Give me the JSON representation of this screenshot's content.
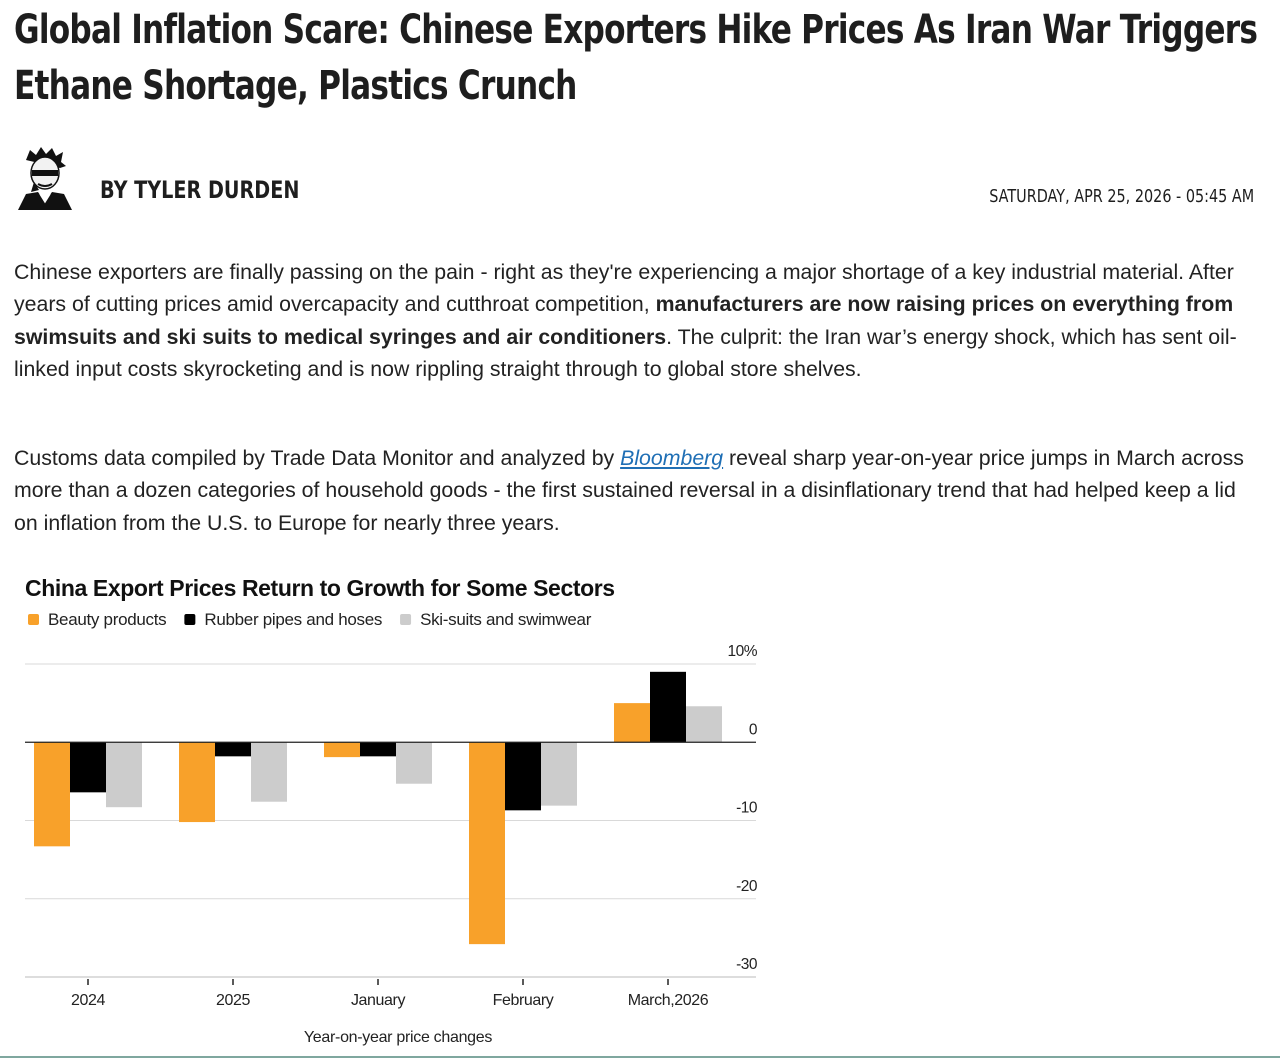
{
  "article": {
    "headline": "Global Inflation Scare: Chinese Exporters Hike Prices As Iran War Triggers Ethane Shortage, Plastics Crunch",
    "author": "BY TYLER DURDEN",
    "date": "SATURDAY, APR 25, 2026 - 05:45 AM",
    "paragraph1": {
      "intro": "Chinese exporters are finally passing on the pain - right as they're experiencing a major shortage of a key industrial material. After years of cutting prices amid overcapacity and cutthroat competition, ",
      "bold": "manufacturers are now raising prices on everything from swimsuits and ski suits to medical syringes and air conditioners",
      "outro": ". The culprit: the Iran war’s energy shock, which has sent oil-linked input costs skyrocketing and is now rippling straight through to global store shelves."
    },
    "paragraph2": {
      "intro": "Customs data compiled by Trade Data Monitor and analyzed by ",
      "link": "Bloomberg",
      "outro": " reveal sharp year-on-year price jumps in March across more than a dozen categories of household goods - the first sustained reversal in a disinflationary trend that had helped keep a lid on inflation from the U.S. to Europe for nearly three years."
    }
  },
  "chart_data": {
    "type": "bar",
    "title": "China Export Prices Return to Growth for Some Sectors",
    "xlabel": "Year-on-year price changes",
    "ylabel": "",
    "categories": [
      "2024",
      "2025",
      "January",
      "February",
      "March,2026"
    ],
    "series": [
      {
        "name": "Beauty products",
        "color": "#f8a12a",
        "values": [
          -13.3,
          -10.2,
          -1.9,
          -25.8,
          5.0
        ]
      },
      {
        "name": "Rubber pipes and hoses",
        "color": "#000000",
        "values": [
          -6.4,
          -1.8,
          -1.8,
          -8.7,
          9.0
        ]
      },
      {
        "name": "Ski-suits and swimwear",
        "color": "#cccccc",
        "values": [
          -8.3,
          -7.6,
          -5.3,
          -8.1,
          4.6
        ]
      }
    ],
    "ylim": [
      -30,
      10
    ],
    "yticks": [
      10,
      0,
      -10,
      -20,
      -30
    ],
    "ytick_labels": [
      "10%",
      "0",
      "-10",
      "-20",
      "-30"
    ],
    "grid": true,
    "legend_position": "top-left"
  }
}
